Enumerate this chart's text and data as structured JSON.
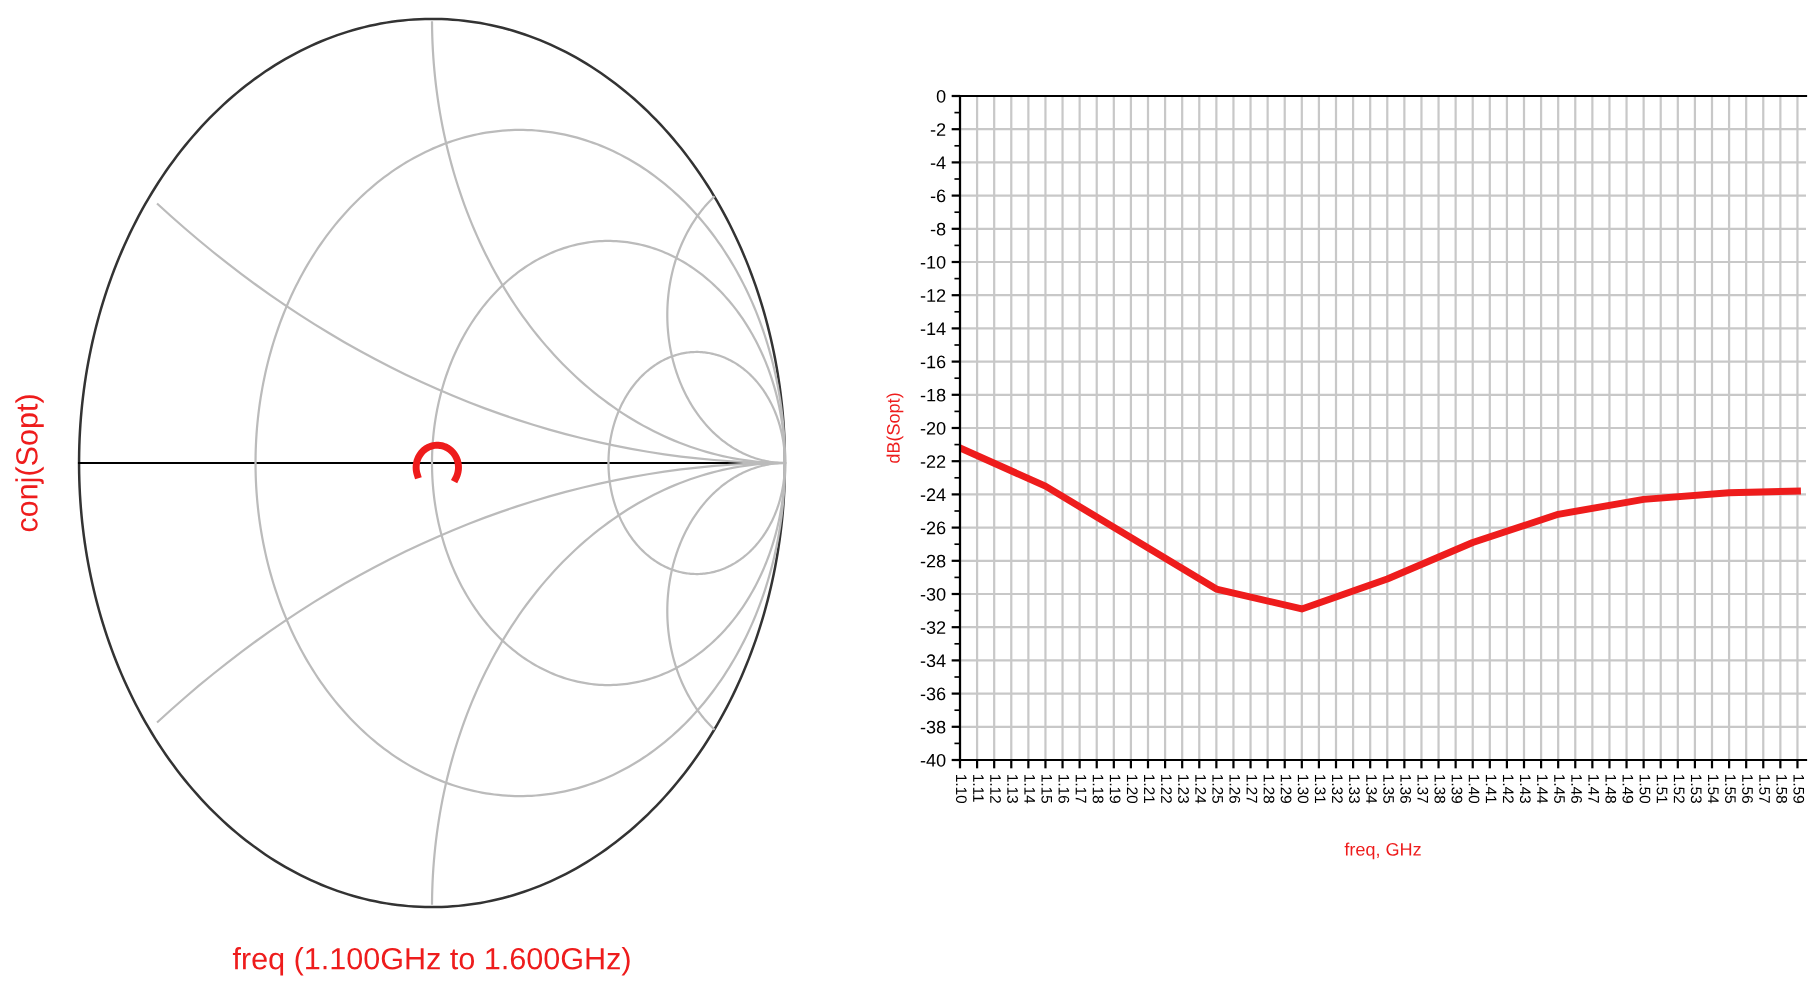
{
  "chart_data": [
    {
      "type": "other",
      "xlabel": "freq (1.100GHz to 1.600GHz)",
      "ylabel": "conj(Sopt)"
    },
    {
      "type": "line",
      "xlabel": "freq, GHz",
      "ylabel": "dB(Sopt)",
      "x": [
        1.1,
        1.15,
        1.25,
        1.3,
        1.35,
        1.4,
        1.45,
        1.5,
        1.55,
        1.59
      ],
      "series": [
        {
          "color": "#ee1c1c",
          "values": [
            -21.2,
            -23.5,
            -29.7,
            -30.9,
            -29.1,
            -26.9,
            -25.2,
            -24.3,
            -23.9,
            -23.8
          ]
        }
      ],
      "xlim": [
        1.1,
        1.595
      ],
      "xticks": [
        {
          "value": 1.1,
          "label": "1.10"
        },
        1.11,
        1.12,
        1.13,
        1.14,
        1.15,
        1.16,
        1.17,
        1.18,
        1.19,
        {
          "value": 1.2,
          "label": "1.20"
        },
        1.21,
        1.22,
        1.23,
        1.24,
        1.25,
        1.26,
        1.27,
        1.28,
        1.29,
        {
          "value": 1.3,
          "label": "1.30"
        },
        1.31,
        1.32,
        1.33,
        1.34,
        1.35,
        1.36,
        1.37,
        1.38,
        1.39,
        {
          "value": 1.4,
          "label": "1.40"
        },
        1.41,
        1.42,
        1.43,
        1.44,
        1.45,
        1.46,
        1.47,
        1.48,
        1.49,
        {
          "value": 1.5,
          "label": "1.50"
        },
        1.51,
        1.52,
        1.53,
        1.54,
        1.55,
        1.56,
        1.57,
        1.58,
        1.59
      ],
      "ylim": [
        -40,
        0
      ],
      "yticks": [
        0,
        -2,
        -4,
        -6,
        -8,
        -10,
        -12,
        -14,
        -16,
        -18,
        -20,
        -22,
        -24,
        -26,
        -28,
        -30,
        -32,
        -34,
        -36,
        -38,
        -40
      ],
      "grid": true,
      "marker": "none",
      "line_style": "solid"
    }
  ]
}
